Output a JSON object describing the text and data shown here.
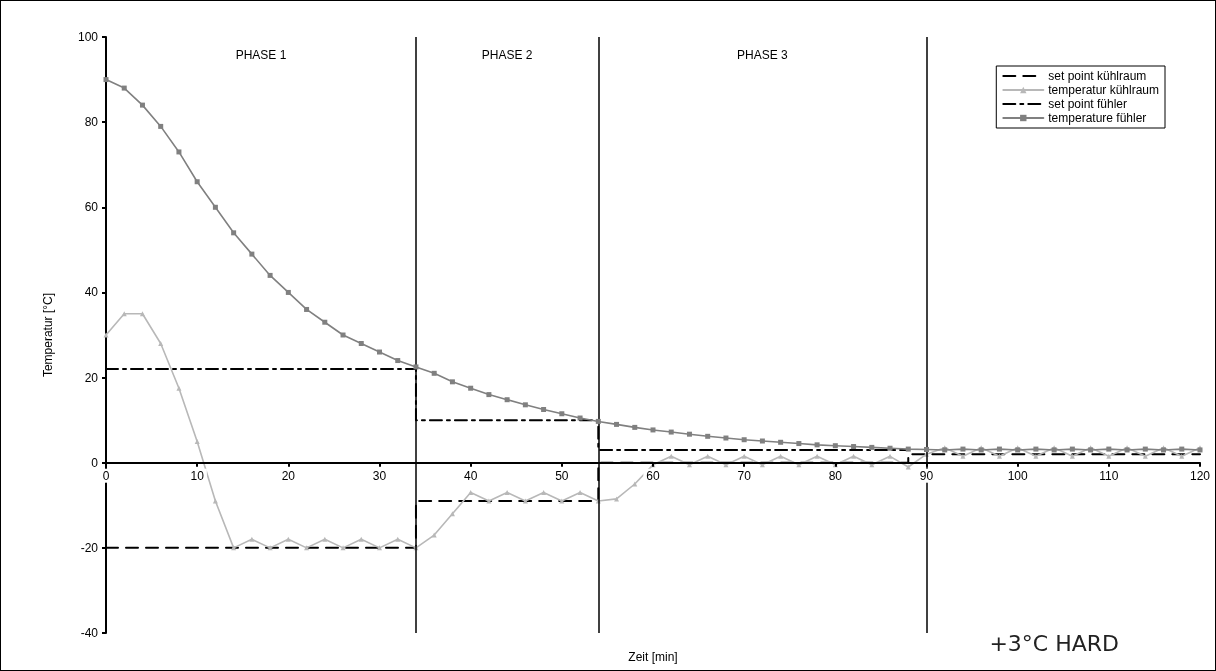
{
  "chart_data": {
    "type": "line",
    "xlabel": "Zeit [min]",
    "ylabel": "Temperatur [°C]",
    "annotations": [
      "PHASE 1",
      "PHASE 2",
      "PHASE 3",
      "+3°C HARD"
    ],
    "x": [
      0,
      2,
      4,
      6,
      8,
      10,
      12,
      14,
      16,
      18,
      20,
      22,
      24,
      26,
      28,
      30,
      32,
      34,
      36,
      38,
      40,
      42,
      44,
      46,
      48,
      50,
      52,
      54,
      56,
      58,
      60,
      62,
      64,
      66,
      68,
      70,
      72,
      74,
      76,
      78,
      80,
      82,
      84,
      86,
      88,
      90,
      92,
      94,
      96,
      98,
      100,
      102,
      104,
      106,
      108,
      110,
      112,
      114,
      116,
      118,
      120
    ],
    "series": [
      {
        "name": "set point kühlraum",
        "color": "#000000",
        "line_style": "dashed",
        "marker": "none",
        "x": [
          0,
          34,
          34,
          54,
          54,
          88,
          88,
          120
        ],
        "values": [
          -20,
          -20,
          -9,
          -9,
          0,
          0,
          2,
          2
        ]
      },
      {
        "name": "temperatur kühlraum",
        "color": "#b8b8b8",
        "line_style": "solid",
        "marker": "triangle",
        "values": [
          30,
          35,
          35,
          28,
          17.5,
          5,
          -9,
          -20,
          -18,
          -20,
          -18,
          -20,
          -18,
          -20,
          -18,
          -20,
          -18,
          -20,
          -17,
          -12,
          -7,
          -9,
          -7,
          -9,
          -7,
          -9,
          -7,
          -9,
          -8.5,
          -5,
          -0.5,
          1.5,
          -0.5,
          1.5,
          -0.5,
          1.5,
          -0.5,
          1.5,
          -0.5,
          1.5,
          -0.5,
          1.5,
          -0.5,
          1.5,
          -1,
          2,
          3.5,
          1.5,
          3.5,
          1.5,
          3.5,
          1.5,
          3.5,
          1.5,
          3.5,
          1.5,
          3.5,
          1.5,
          3.5,
          1.5,
          3.5
        ]
      },
      {
        "name": "set point fühler",
        "color": "#000000",
        "line_style": "dashdot",
        "marker": "none",
        "x": [
          0,
          34,
          34,
          54,
          54,
          88
        ],
        "values": [
          22,
          22,
          10,
          10,
          3,
          3
        ]
      },
      {
        "name": "temperature fühler",
        "color": "#808080",
        "line_style": "solid",
        "marker": "square",
        "values": [
          90,
          88,
          84,
          79,
          73,
          66,
          60,
          54,
          49,
          44,
          40,
          36,
          33,
          30,
          28,
          26,
          24,
          22.5,
          21,
          19,
          17.5,
          16,
          14.8,
          13.6,
          12.5,
          11.5,
          10.5,
          9.7,
          9,
          8.3,
          7.7,
          7.2,
          6.7,
          6.2,
          5.8,
          5.4,
          5.1,
          4.8,
          4.5,
          4.2,
          4,
          3.8,
          3.6,
          3.4,
          3.2,
          3.1,
          3,
          3.2,
          3,
          3.2,
          3,
          3.2,
          3,
          3.2,
          3,
          3.2,
          3,
          3.2,
          3,
          3.2,
          3
        ]
      }
    ],
    "xlim": [
      0,
      120
    ],
    "xticks": [
      0,
      10,
      20,
      30,
      40,
      50,
      60,
      70,
      80,
      90,
      100,
      110,
      120
    ],
    "ylim": [
      -40,
      100
    ],
    "yticks": [
      -40,
      -20,
      0,
      20,
      40,
      60,
      80,
      100
    ],
    "ref_lines": [
      {
        "axis": "x",
        "value": 34,
        "color": "#000000"
      },
      {
        "axis": "x",
        "value": 54,
        "color": "#000000"
      },
      {
        "axis": "x",
        "value": 90,
        "color": "#000000"
      }
    ],
    "grid": false,
    "legend": "top right"
  }
}
